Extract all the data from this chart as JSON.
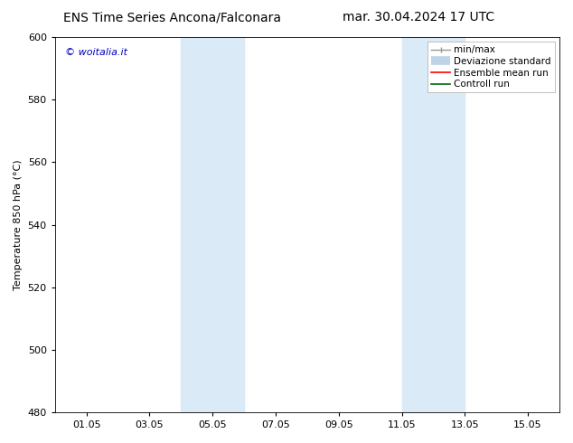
{
  "title_left": "ENS Time Series Ancona/Falconara",
  "title_right": "mar. 30.04.2024 17 UTC",
  "ylabel": "Temperature 850 hPa (°C)",
  "ylim": [
    480,
    600
  ],
  "yticks": [
    480,
    500,
    520,
    540,
    560,
    580,
    600
  ],
  "xtick_labels": [
    "01.05",
    "03.05",
    "05.05",
    "07.05",
    "09.05",
    "11.05",
    "13.05",
    "15.05"
  ],
  "xtick_positions": [
    1,
    3,
    5,
    7,
    9,
    11,
    13,
    15
  ],
  "xlim": [
    0,
    16
  ],
  "background_color": "#ffffff",
  "plot_bg_color": "#ffffff",
  "shaded_regions": [
    {
      "x_start": 4.0,
      "x_end": 5.0,
      "color": "#daeaf7"
    },
    {
      "x_start": 5.0,
      "x_end": 6.0,
      "color": "#daeaf7"
    },
    {
      "x_start": 11.0,
      "x_end": 12.0,
      "color": "#daeaf7"
    },
    {
      "x_start": 12.0,
      "x_end": 13.0,
      "color": "#daeaf7"
    }
  ],
  "legend_entries": [
    {
      "label": "min/max",
      "color": "#aaaaaa",
      "lw": 1.0
    },
    {
      "label": "Deviazione standard",
      "color": "#c8dff0",
      "lw": 6
    },
    {
      "label": "Ensemble mean run",
      "color": "#ff0000",
      "lw": 1.2
    },
    {
      "label": "Controll run",
      "color": "#006400",
      "lw": 1.2
    }
  ],
  "watermark_text": "© woitalia.it",
  "watermark_color": "#0000bb",
  "watermark_fontsize": 8,
  "title_fontsize": 10,
  "axis_label_fontsize": 8,
  "tick_fontsize": 8,
  "legend_fontsize": 7.5
}
